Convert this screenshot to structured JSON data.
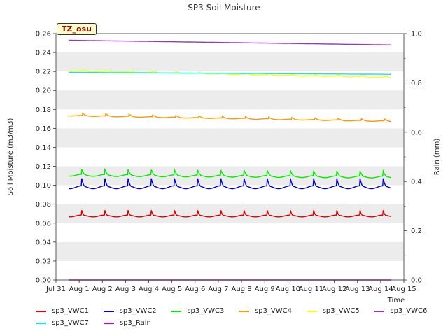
{
  "chart_data": {
    "type": "line",
    "title": "SP3 Soil Moisture",
    "ylabel": "Soil Moisture (m3/m3)",
    "y2label": "Rain (mm)",
    "xlabel": "Time",
    "ylim": [
      0,
      0.26
    ],
    "y2lim": [
      0,
      1.0
    ],
    "yticks": [
      "0.00",
      "0.02",
      "0.04",
      "0.06",
      "0.08",
      "0.10",
      "0.12",
      "0.14",
      "0.16",
      "0.18",
      "0.20",
      "0.22",
      "0.24",
      "0.26"
    ],
    "y2ticks": [
      "0.0",
      "0.2",
      "0.4",
      "0.6",
      "0.8",
      "1.0"
    ],
    "xticks": [
      "Jul 31",
      "Aug 1",
      "Aug 2",
      "Aug 3",
      "Aug 4",
      "Aug 5",
      "Aug 6",
      "Aug 7",
      "Aug 8",
      "Aug 9",
      "Aug 10",
      "Aug 11",
      "Aug 12",
      "Aug 13",
      "Aug 14",
      "Aug 15"
    ],
    "x_range_days": [
      0,
      15
    ],
    "data_start_day": 0.55,
    "data_end_day": 14.45,
    "grid": "horizontal bands",
    "badge": "TZ_osu",
    "series": [
      {
        "name": "sp3_VWC1",
        "color": "#dd0000",
        "axis": "left",
        "base": 0.069,
        "trend": 0.0,
        "amp": 0.008,
        "width": 0.12,
        "peak_phase": 0.1
      },
      {
        "name": "sp3_VWC2",
        "color": "#0000cc",
        "axis": "left",
        "base": 0.1,
        "trend": 0.0,
        "amp": 0.012,
        "width": 0.15,
        "peak_phase": 0.1
      },
      {
        "name": "sp3_VWC3",
        "color": "#00ee00",
        "axis": "left",
        "base": 0.112,
        "trend": -0.002,
        "amp": 0.008,
        "width": 0.18,
        "peak_phase": 0.1
      },
      {
        "name": "sp3_VWC4",
        "color": "#ff9900",
        "axis": "left",
        "base": 0.174,
        "trend": -0.006,
        "amp": 0.003,
        "width": 0.25,
        "peak_phase": 0.15
      },
      {
        "name": "sp3_VWC5",
        "color": "#ffff00",
        "axis": "left",
        "base": 0.221,
        "trend": -0.007,
        "amp": 0.002,
        "width": 0.3,
        "peak_phase": 0.15
      },
      {
        "name": "sp3_VWC6",
        "color": "#9933cc",
        "axis": "left",
        "base": 0.253,
        "trend": -0.005,
        "amp": 0.0,
        "width": 0.3,
        "peak_phase": 0.0
      },
      {
        "name": "sp3_VWC7",
        "color": "#00eeee",
        "axis": "left",
        "base": 0.219,
        "trend": -0.002,
        "amp": 0.0,
        "width": 0.3,
        "peak_phase": 0.0
      },
      {
        "name": "sp3_Rain",
        "color": "#cc00cc",
        "axis": "right",
        "base": 0.0,
        "trend": 0.0,
        "amp": 0.0,
        "width": 0.3,
        "peak_phase": 0.0
      }
    ]
  }
}
